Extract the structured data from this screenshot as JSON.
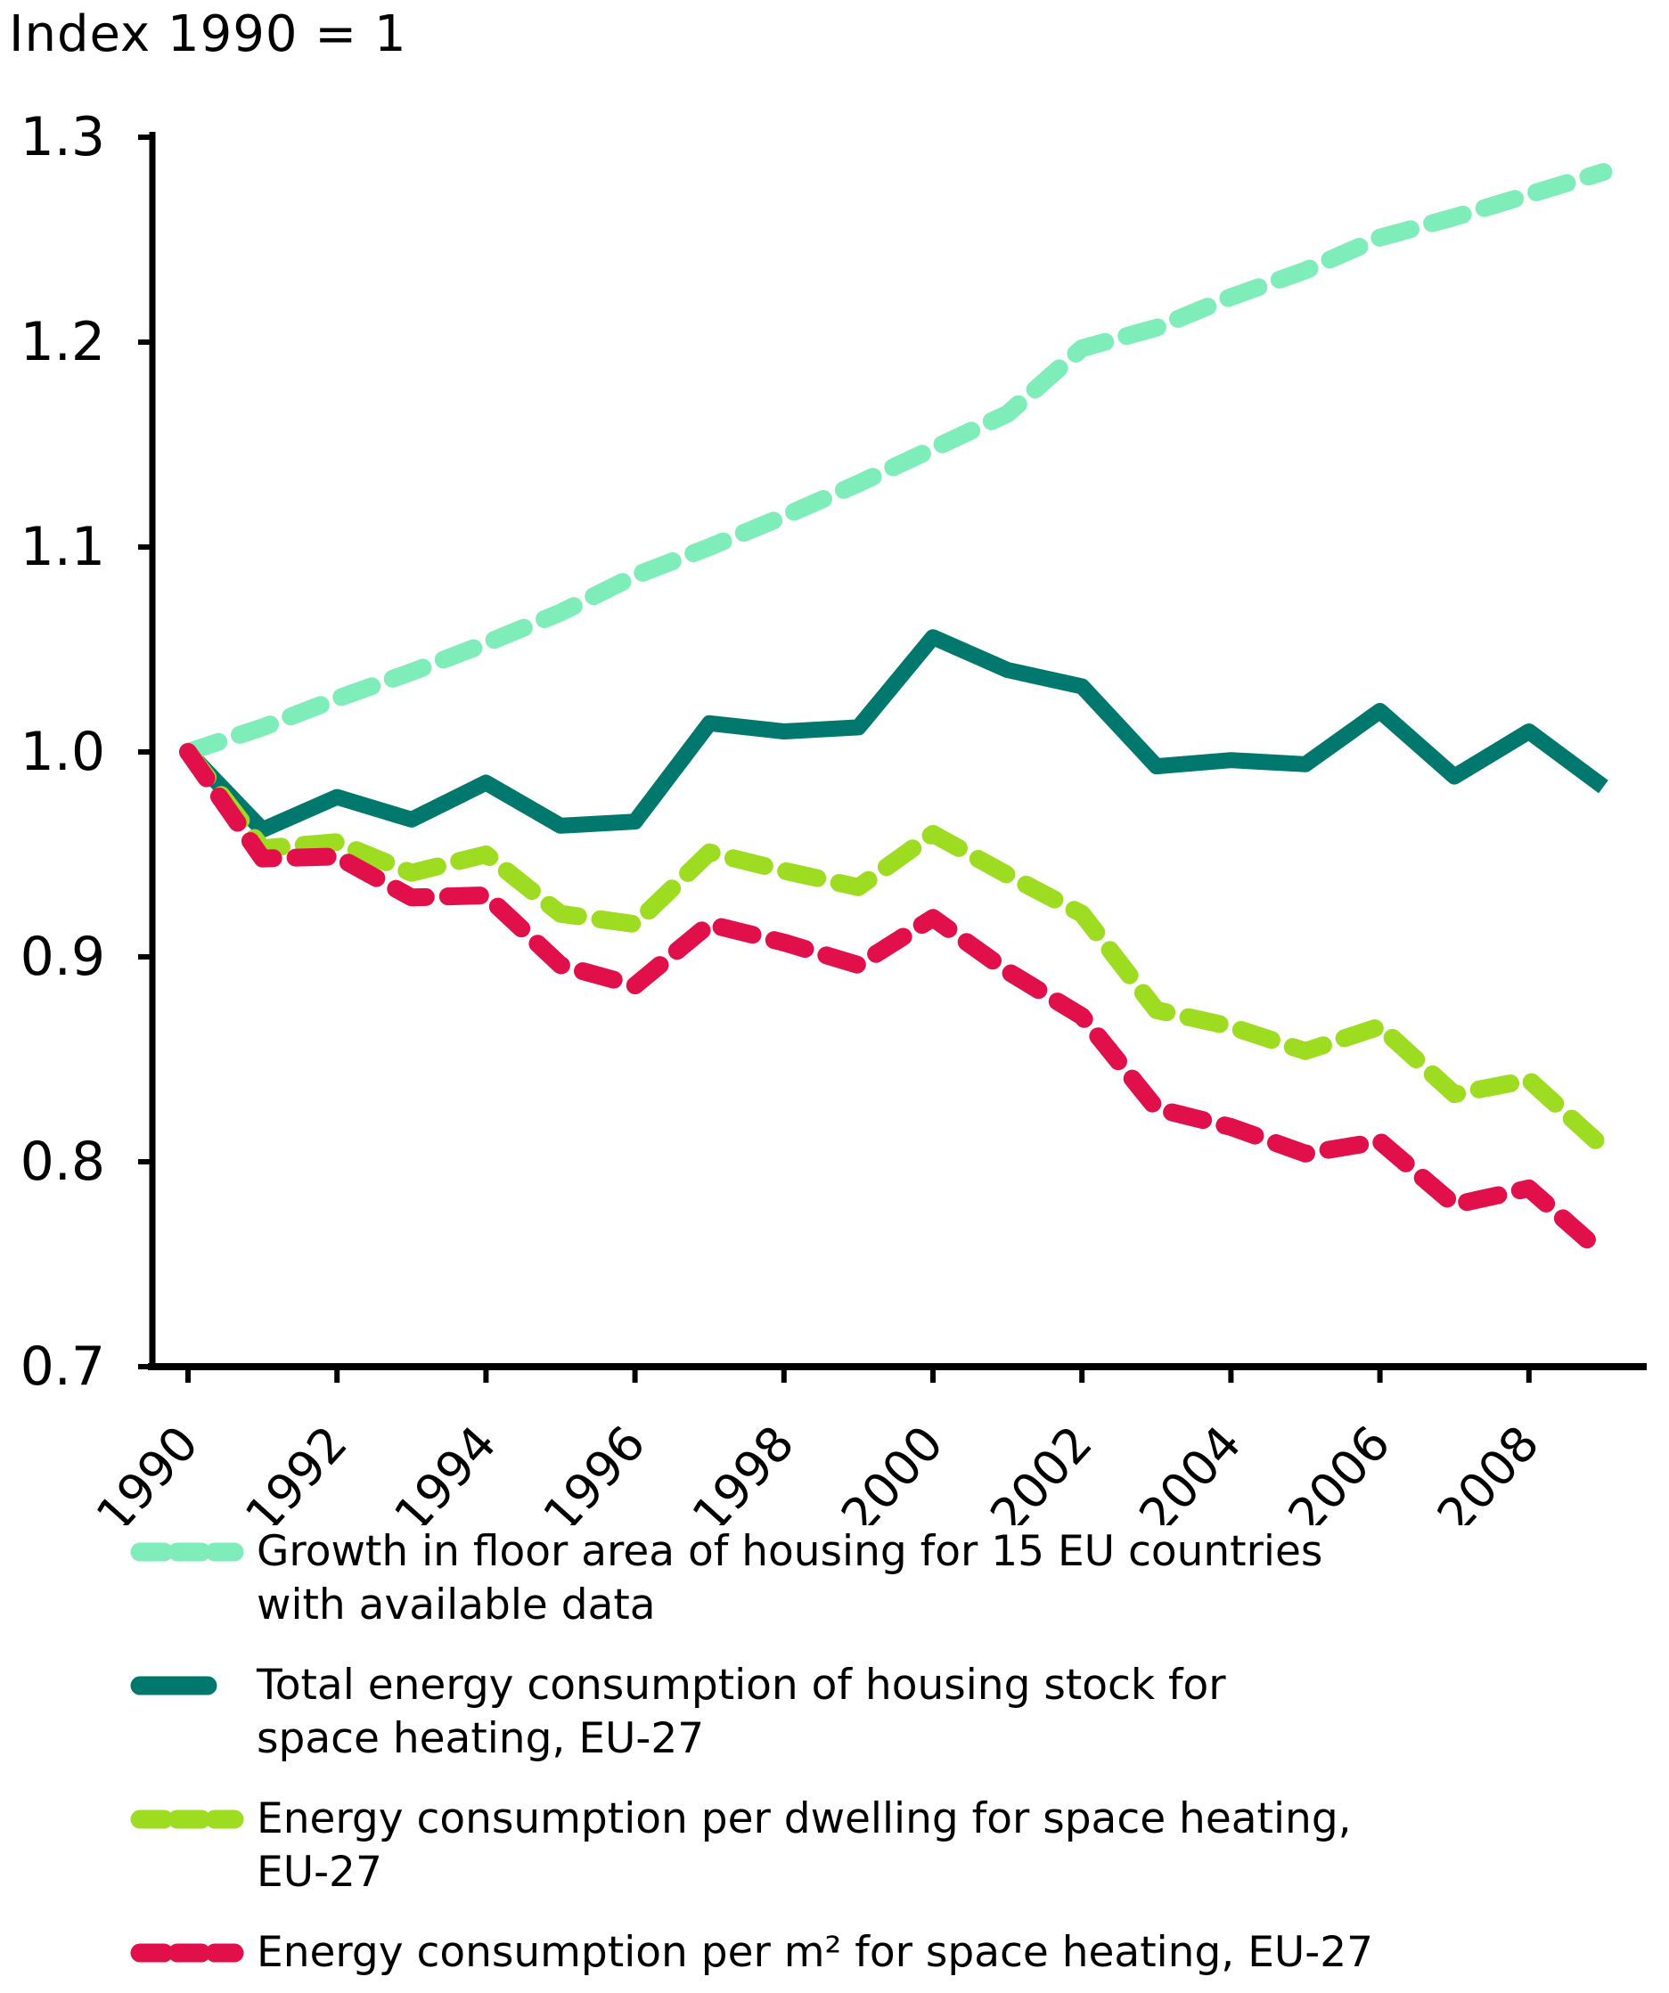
{
  "header": {
    "title": "Index 1990 = 1"
  },
  "chart_data": {
    "type": "line",
    "title": "Index 1990 = 1",
    "x": [
      1990,
      1991,
      1992,
      1993,
      1994,
      1995,
      1996,
      1997,
      1998,
      1999,
      2000,
      2001,
      2002,
      2003,
      2004,
      2005,
      2006,
      2007,
      2008,
      2009
    ],
    "x_tick_labels": [
      "1990",
      "1992",
      "1994",
      "1996",
      "1998",
      "2000",
      "2002",
      "2004",
      "2006",
      "2008"
    ],
    "y_ticks": [
      "1.3",
      "1.2",
      "1.1",
      "1.0",
      "0.9",
      "0.8",
      "0.7"
    ],
    "ylim": [
      0.7,
      1.3
    ],
    "grid": false,
    "legend_position": "bottom",
    "series": [
      {
        "key": "floor-area",
        "name": "Growth in floor area of housing for 15 EU countries with available data",
        "color": "#7fedb9",
        "style": "dashed",
        "values": [
          1.0,
          1.012,
          1.026,
          1.039,
          1.053,
          1.068,
          1.086,
          1.1,
          1.115,
          1.131,
          1.148,
          1.165,
          1.197,
          1.207,
          1.222,
          1.235,
          1.251,
          1.261,
          1.272,
          1.283
        ]
      },
      {
        "key": "total-energy",
        "name": "Total energy consumption of housing stock for space heating, EU-27",
        "color": "#00786d",
        "style": "solid",
        "values": [
          1.0,
          0.962,
          0.978,
          0.967,
          0.985,
          0.964,
          0.966,
          1.014,
          1.01,
          1.012,
          1.056,
          1.04,
          1.032,
          0.993,
          0.996,
          0.994,
          1.02,
          0.988,
          1.01,
          0.983
        ]
      },
      {
        "key": "per-dwelling",
        "name": "Energy consumption per dwelling for space heating, EU-27",
        "color": "#9ddc20",
        "style": "dashed",
        "values": [
          1.0,
          0.953,
          0.956,
          0.941,
          0.95,
          0.921,
          0.916,
          0.951,
          0.942,
          0.934,
          0.96,
          0.94,
          0.921,
          0.874,
          0.866,
          0.854,
          0.866,
          0.833,
          0.84,
          0.807
        ]
      },
      {
        "key": "per-m2",
        "name": "Energy consumption per m² for space heating, EU-27",
        "color": "#e2104a",
        "style": "dashed",
        "values": [
          1.0,
          0.948,
          0.949,
          0.929,
          0.93,
          0.896,
          0.886,
          0.916,
          0.907,
          0.896,
          0.919,
          0.893,
          0.871,
          0.826,
          0.817,
          0.804,
          0.81,
          0.779,
          0.787,
          0.755
        ]
      }
    ]
  },
  "legend": {
    "items": [
      {
        "key": "floor-area",
        "color": "#7fedb9",
        "style": "dashed",
        "line1": "Growth in floor area of housing for 15 EU countries",
        "line2": "with available data"
      },
      {
        "key": "total-energy",
        "color": "#00786d",
        "style": "solid",
        "line1": "Total energy consumption of housing stock for",
        "line2": "space heating, EU-27"
      },
      {
        "key": "per-dwelling",
        "color": "#9ddc20",
        "style": "dashed",
        "line1": "Energy consumption per dwelling for space heating,",
        "line2": "EU-27"
      },
      {
        "key": "per-m2",
        "color": "#e2104a",
        "style": "dashed",
        "line1": "Energy consumption per m² for space heating, EU-27",
        "line2": ""
      }
    ]
  }
}
